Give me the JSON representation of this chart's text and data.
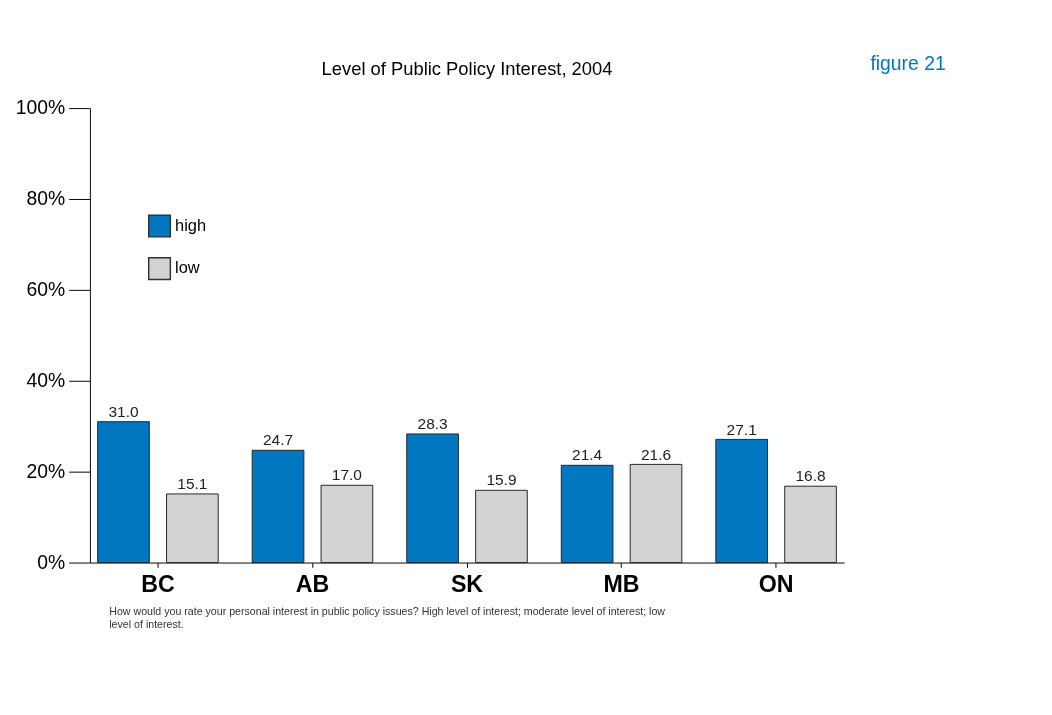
{
  "chart_data": {
    "type": "bar",
    "title": "Level of Public Policy Interest, 2004",
    "categories": [
      "BC",
      "AB",
      "SK",
      "MB",
      "ON"
    ],
    "series": [
      {
        "name": "high",
        "color": "#0077c0",
        "values": [
          31.0,
          24.7,
          28.3,
          21.4,
          27.1
        ],
        "value_labels": [
          "31.0",
          "24.7",
          "28.3",
          "21.4",
          "27.1"
        ]
      },
      {
        "name": "low",
        "color": "#d3d3d5",
        "values": [
          15.1,
          17.0,
          15.9,
          21.6,
          16.8
        ],
        "value_labels": [
          "15.1",
          "17.0",
          "15.9",
          "21.6",
          "16.8"
        ]
      }
    ],
    "ylim": [
      0,
      100
    ],
    "yticks": [
      {
        "value": 0,
        "label": "0%"
      },
      {
        "value": 20,
        "label": "20%"
      },
      {
        "value": 40,
        "label": "40%"
      },
      {
        "value": 60,
        "label": "60%"
      },
      {
        "value": 80,
        "label": "80%"
      },
      {
        "value": 100,
        "label": "100%"
      }
    ],
    "legend": "top left",
    "grid": false,
    "annotations": [
      "figure 21",
      "How would you rate your personal interest in public policy issues? High level of interest; moderate level of interest; low level of interest."
    ]
  }
}
